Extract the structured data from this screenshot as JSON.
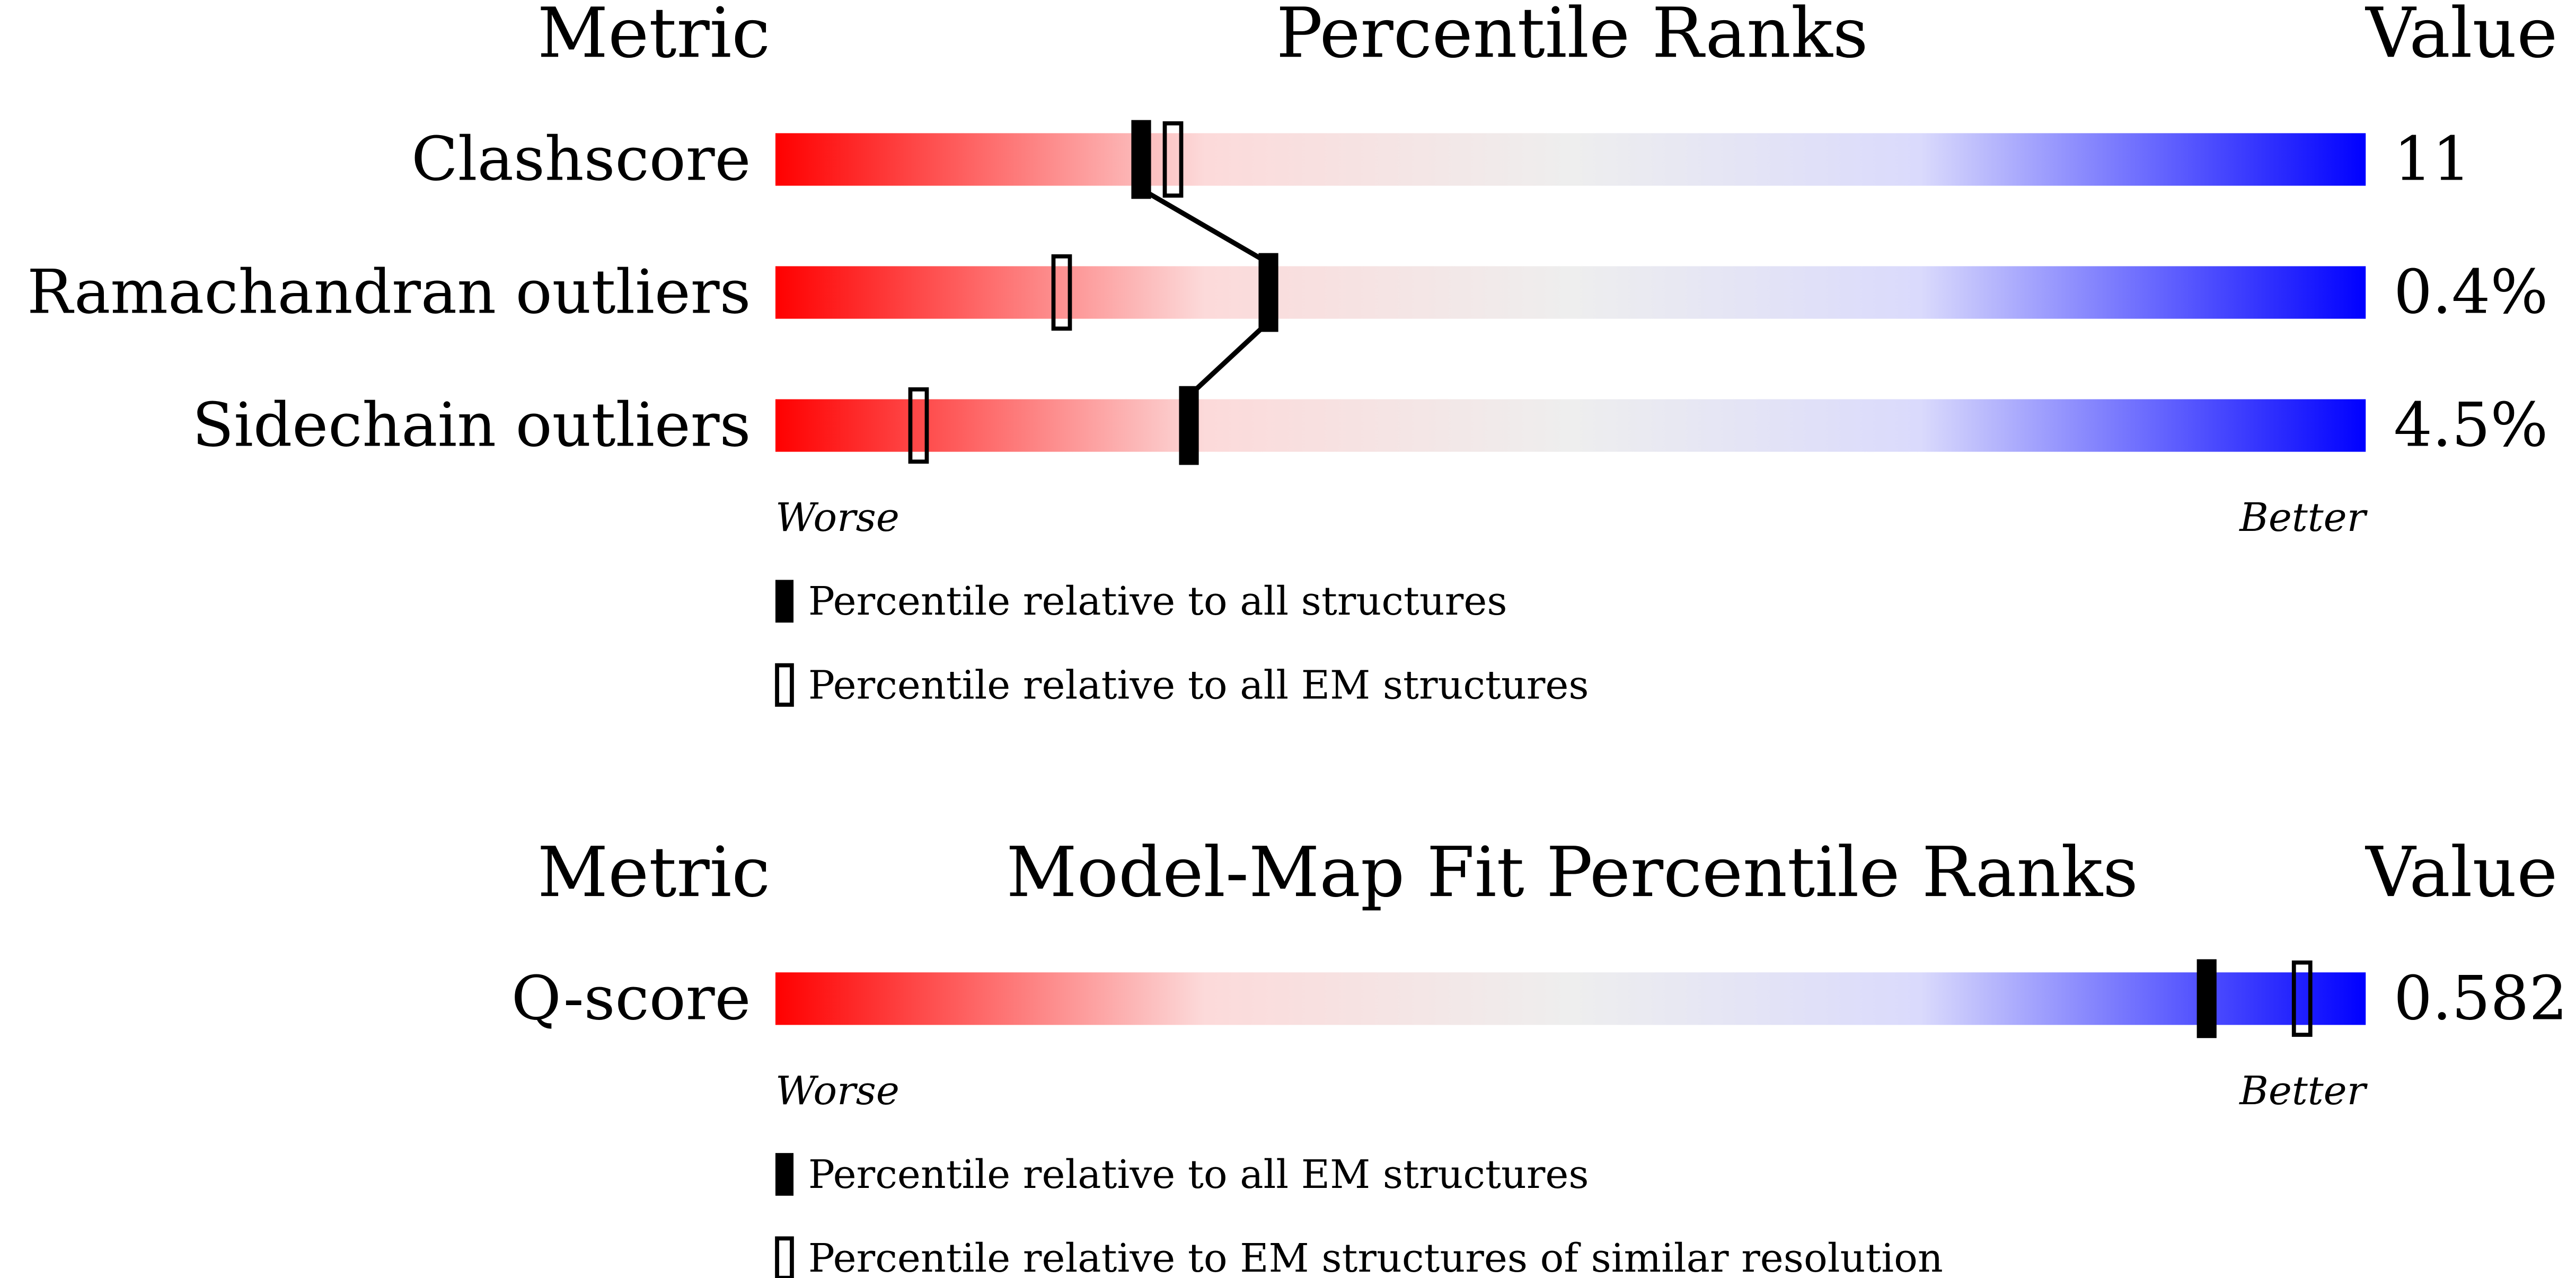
{
  "chart_data": [
    {
      "type": "percentile",
      "header": {
        "metric": "Metric",
        "title": "Percentile Ranks",
        "value": "Value"
      },
      "categories": [
        "Clashscore",
        "Ramachandran outliers",
        "Sidechain outliers"
      ],
      "value_texts": [
        "11",
        "0.4%",
        "4.5%"
      ],
      "xlim": [
        0,
        100
      ],
      "scale_labels": [
        "Worse",
        "Better"
      ],
      "series": [
        {
          "name": "Percentile relative to all structures",
          "style": "filled",
          "connected": true,
          "color": "#000000",
          "values": [
            23,
            31,
            26
          ]
        },
        {
          "name": "Percentile relative to all EM structures",
          "style": "open",
          "connected": false,
          "color": "#000000",
          "values": [
            25,
            18,
            9
          ]
        }
      ]
    },
    {
      "type": "percentile",
      "header": {
        "metric": "Metric",
        "title": "Model-Map Fit Percentile Ranks",
        "value": "Value"
      },
      "categories": [
        "Q-score"
      ],
      "value_texts": [
        "0.582"
      ],
      "xlim": [
        0,
        100
      ],
      "scale_labels": [
        "Worse",
        "Better"
      ],
      "series": [
        {
          "name": "Percentile relative to all EM structures",
          "style": "filled",
          "connected": true,
          "color": "#000000",
          "values": [
            90
          ]
        },
        {
          "name": "Percentile relative to EM structures of similar resolution",
          "style": "open",
          "connected": false,
          "color": "#000000",
          "values": [
            96
          ]
        }
      ]
    }
  ]
}
